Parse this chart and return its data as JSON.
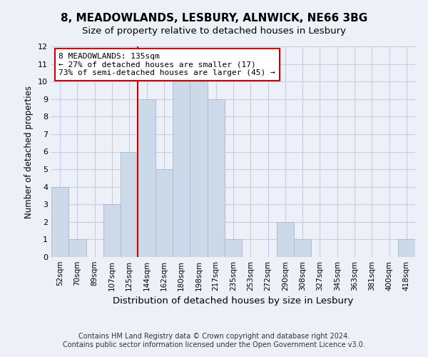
{
  "title1": "8, MEADOWLANDS, LESBURY, ALNWICK, NE66 3BG",
  "title2": "Size of property relative to detached houses in Lesbury",
  "xlabel": "Distribution of detached houses by size in Lesbury",
  "ylabel": "Number of detached properties",
  "categories": [
    "52sqm",
    "70sqm",
    "89sqm",
    "107sqm",
    "125sqm",
    "144sqm",
    "162sqm",
    "180sqm",
    "198sqm",
    "217sqm",
    "235sqm",
    "253sqm",
    "272sqm",
    "290sqm",
    "308sqm",
    "327sqm",
    "345sqm",
    "363sqm",
    "381sqm",
    "400sqm",
    "418sqm"
  ],
  "values": [
    4,
    1,
    0,
    3,
    6,
    9,
    5,
    10,
    10,
    9,
    1,
    0,
    0,
    2,
    1,
    0,
    0,
    0,
    0,
    0,
    1
  ],
  "bar_color": "#ccd9e8",
  "bar_edgecolor": "#aabcce",
  "red_line_index": 4.5,
  "annotation_line1": "8 MEADOWLANDS: 135sqm",
  "annotation_line2": "← 27% of detached houses are smaller (17)",
  "annotation_line3": "73% of semi-detached houses are larger (45) →",
  "annotation_box_facecolor": "#ffffff",
  "annotation_box_edgecolor": "#cc0000",
  "ylim": [
    0,
    12
  ],
  "yticks": [
    0,
    1,
    2,
    3,
    4,
    5,
    6,
    7,
    8,
    9,
    10,
    11,
    12
  ],
  "footer1": "Contains HM Land Registry data © Crown copyright and database right 2024.",
  "footer2": "Contains public sector information licensed under the Open Government Licence v3.0.",
  "background_color": "#eef0f8",
  "grid_color": "#c5cde0",
  "title1_fontsize": 11,
  "title2_fontsize": 9.5,
  "xlabel_fontsize": 9.5,
  "ylabel_fontsize": 8.5,
  "tick_fontsize": 7.5,
  "footer_fontsize": 7,
  "annotation_fontsize": 8
}
